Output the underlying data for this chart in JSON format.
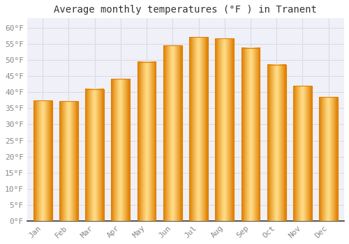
{
  "title": "Average monthly temperatures (°F ) in Tranent",
  "months": [
    "Jan",
    "Feb",
    "Mar",
    "Apr",
    "May",
    "Jun",
    "Jul",
    "Aug",
    "Sep",
    "Oct",
    "Nov",
    "Dec"
  ],
  "values": [
    37.5,
    37.2,
    41.0,
    44.2,
    49.5,
    54.5,
    57.2,
    56.8,
    53.8,
    48.6,
    42.0,
    38.5
  ],
  "bar_color_center": "#FFB733",
  "bar_color_edge": "#E08000",
  "bar_color_light": "#FFDD88",
  "background_color": "#FFFFFF",
  "plot_bg_color": "#F0F0F8",
  "grid_color": "#D8D8E8",
  "ytick_labels": [
    "0°F",
    "5°F",
    "10°F",
    "15°F",
    "20°F",
    "25°F",
    "30°F",
    "35°F",
    "40°F",
    "45°F",
    "50°F",
    "55°F",
    "60°F"
  ],
  "ytick_values": [
    0,
    5,
    10,
    15,
    20,
    25,
    30,
    35,
    40,
    45,
    50,
    55,
    60
  ],
  "ylim": [
    0,
    63
  ],
  "title_fontsize": 10,
  "tick_fontsize": 8,
  "tick_color": "#888888",
  "axis_color": "#333333",
  "spine_color": "#999999",
  "bar_width": 0.72,
  "gradient_steps": 20
}
